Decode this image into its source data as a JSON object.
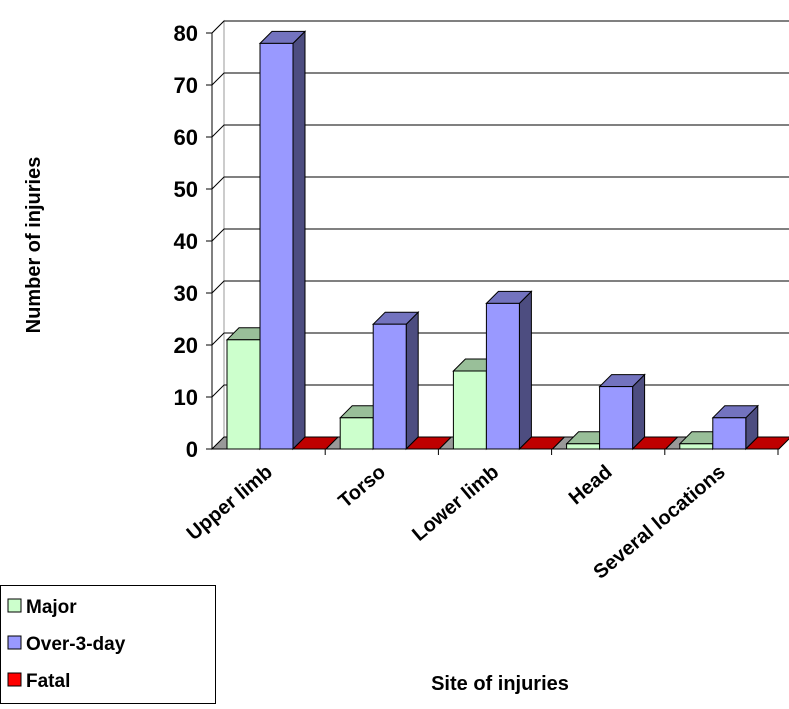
{
  "chart_data": {
    "type": "bar3d",
    "x_label": "Site of injuries",
    "y_label": "Number of injuries",
    "categories": [
      "Upper limb",
      "Torso",
      "Lower limb",
      "Head",
      "Several locations"
    ],
    "series": [
      {
        "name": "Major",
        "color": "#ccffcc",
        "values": [
          21,
          6,
          15,
          1,
          1
        ]
      },
      {
        "name": "Over-3-day",
        "color": "#9999ff",
        "values": [
          78,
          24,
          28,
          12,
          6
        ]
      },
      {
        "name": "Fatal",
        "color": "#ff0000",
        "values": [
          0,
          0,
          0,
          0,
          0
        ]
      }
    ],
    "ylim": [
      0,
      80
    ],
    "yticks": [
      0,
      10,
      20,
      30,
      40,
      50,
      60,
      70,
      80
    ],
    "grid": true,
    "legend": "bottom-left"
  }
}
